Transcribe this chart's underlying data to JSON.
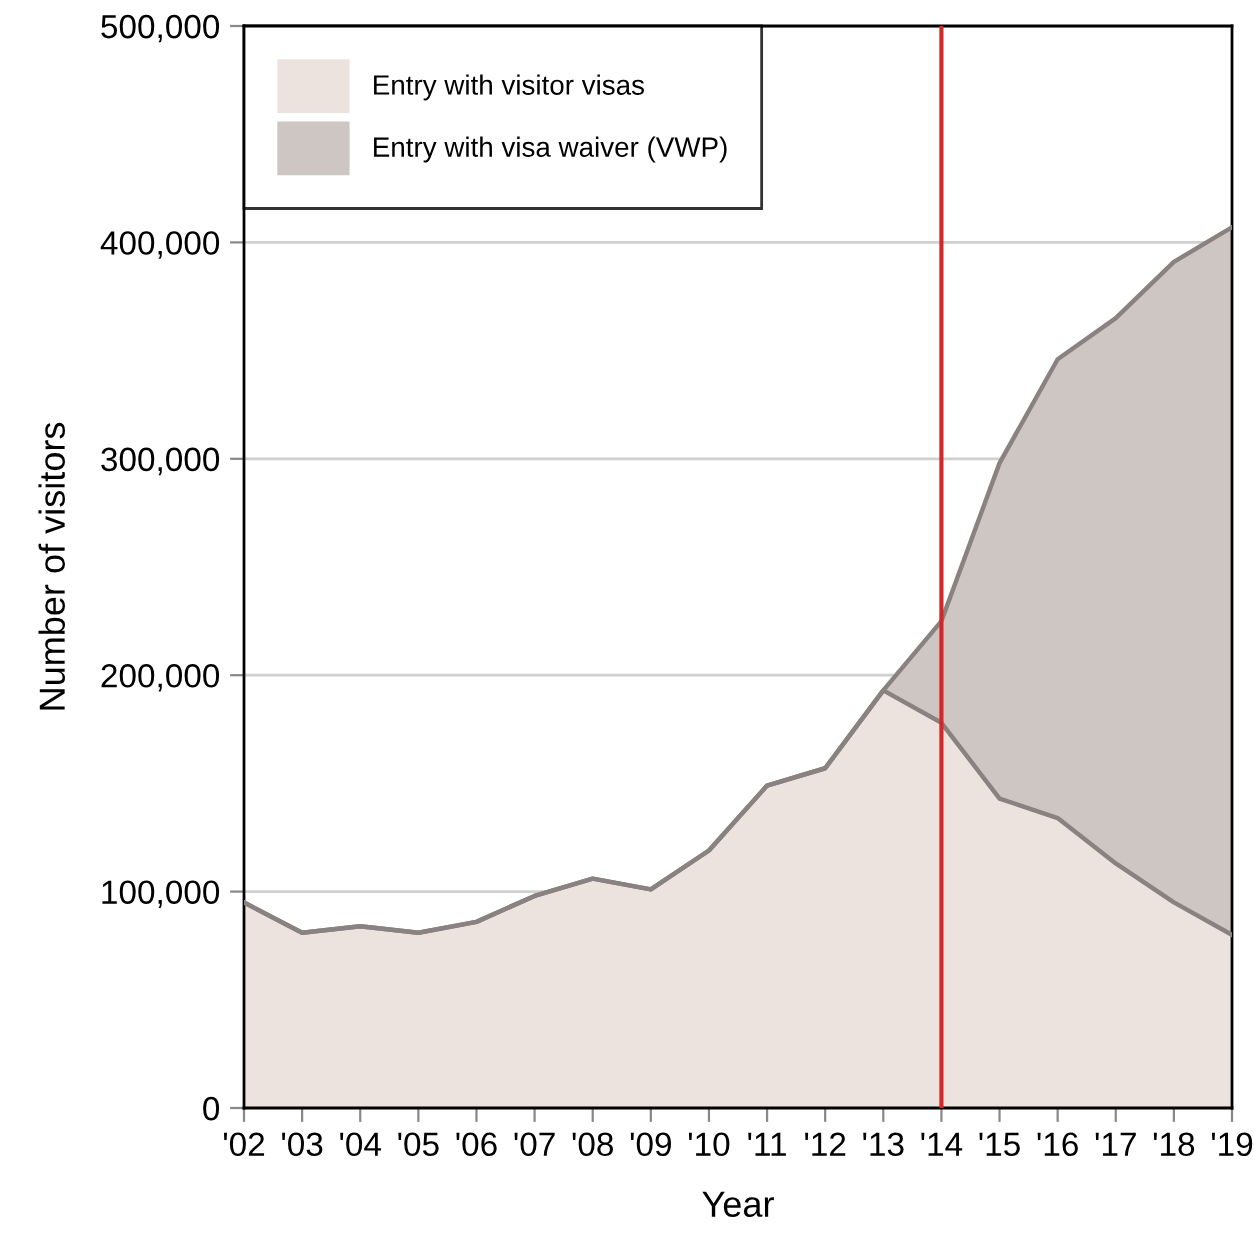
{
  "chart_data": {
    "type": "area",
    "stacked": true,
    "xlabel": "Year",
    "ylabel": "Number of visitors",
    "categories": [
      "'02",
      "'03",
      "'04",
      "'05",
      "'06",
      "'07",
      "'08",
      "'09",
      "'10",
      "'11",
      "'12",
      "'13",
      "'14",
      "'15",
      "'16",
      "'17",
      "'18",
      "'19"
    ],
    "series": [
      {
        "name": "Entry with visitor visas",
        "color": "#ece3de",
        "values": [
          95000,
          81000,
          84000,
          81000,
          86000,
          98000,
          106000,
          101000,
          119000,
          149000,
          157000,
          193000,
          178000,
          143000,
          134000,
          113000,
          95000,
          80000
        ]
      },
      {
        "name": "Entry with visa waiver (VWP)",
        "color": "#cec6c2",
        "values": [
          0,
          0,
          0,
          0,
          0,
          0,
          0,
          0,
          0,
          0,
          0,
          0,
          47000,
          155000,
          212000,
          252000,
          296000,
          327000
        ]
      }
    ],
    "ylim": [
      0,
      500000
    ],
    "yticks": [
      {
        "value": 0,
        "label": "0"
      },
      {
        "value": 100000,
        "label": "100,000"
      },
      {
        "value": 200000,
        "label": "200,000"
      },
      {
        "value": 300000,
        "label": "300,000"
      },
      {
        "value": 400000,
        "label": "400,000"
      },
      {
        "value": 500000,
        "label": "500,000"
      }
    ],
    "grid": "y",
    "legend": "top left",
    "ref_lines": [
      {
        "axis": "x",
        "value": "'14",
        "color": "#d62728"
      }
    ]
  }
}
